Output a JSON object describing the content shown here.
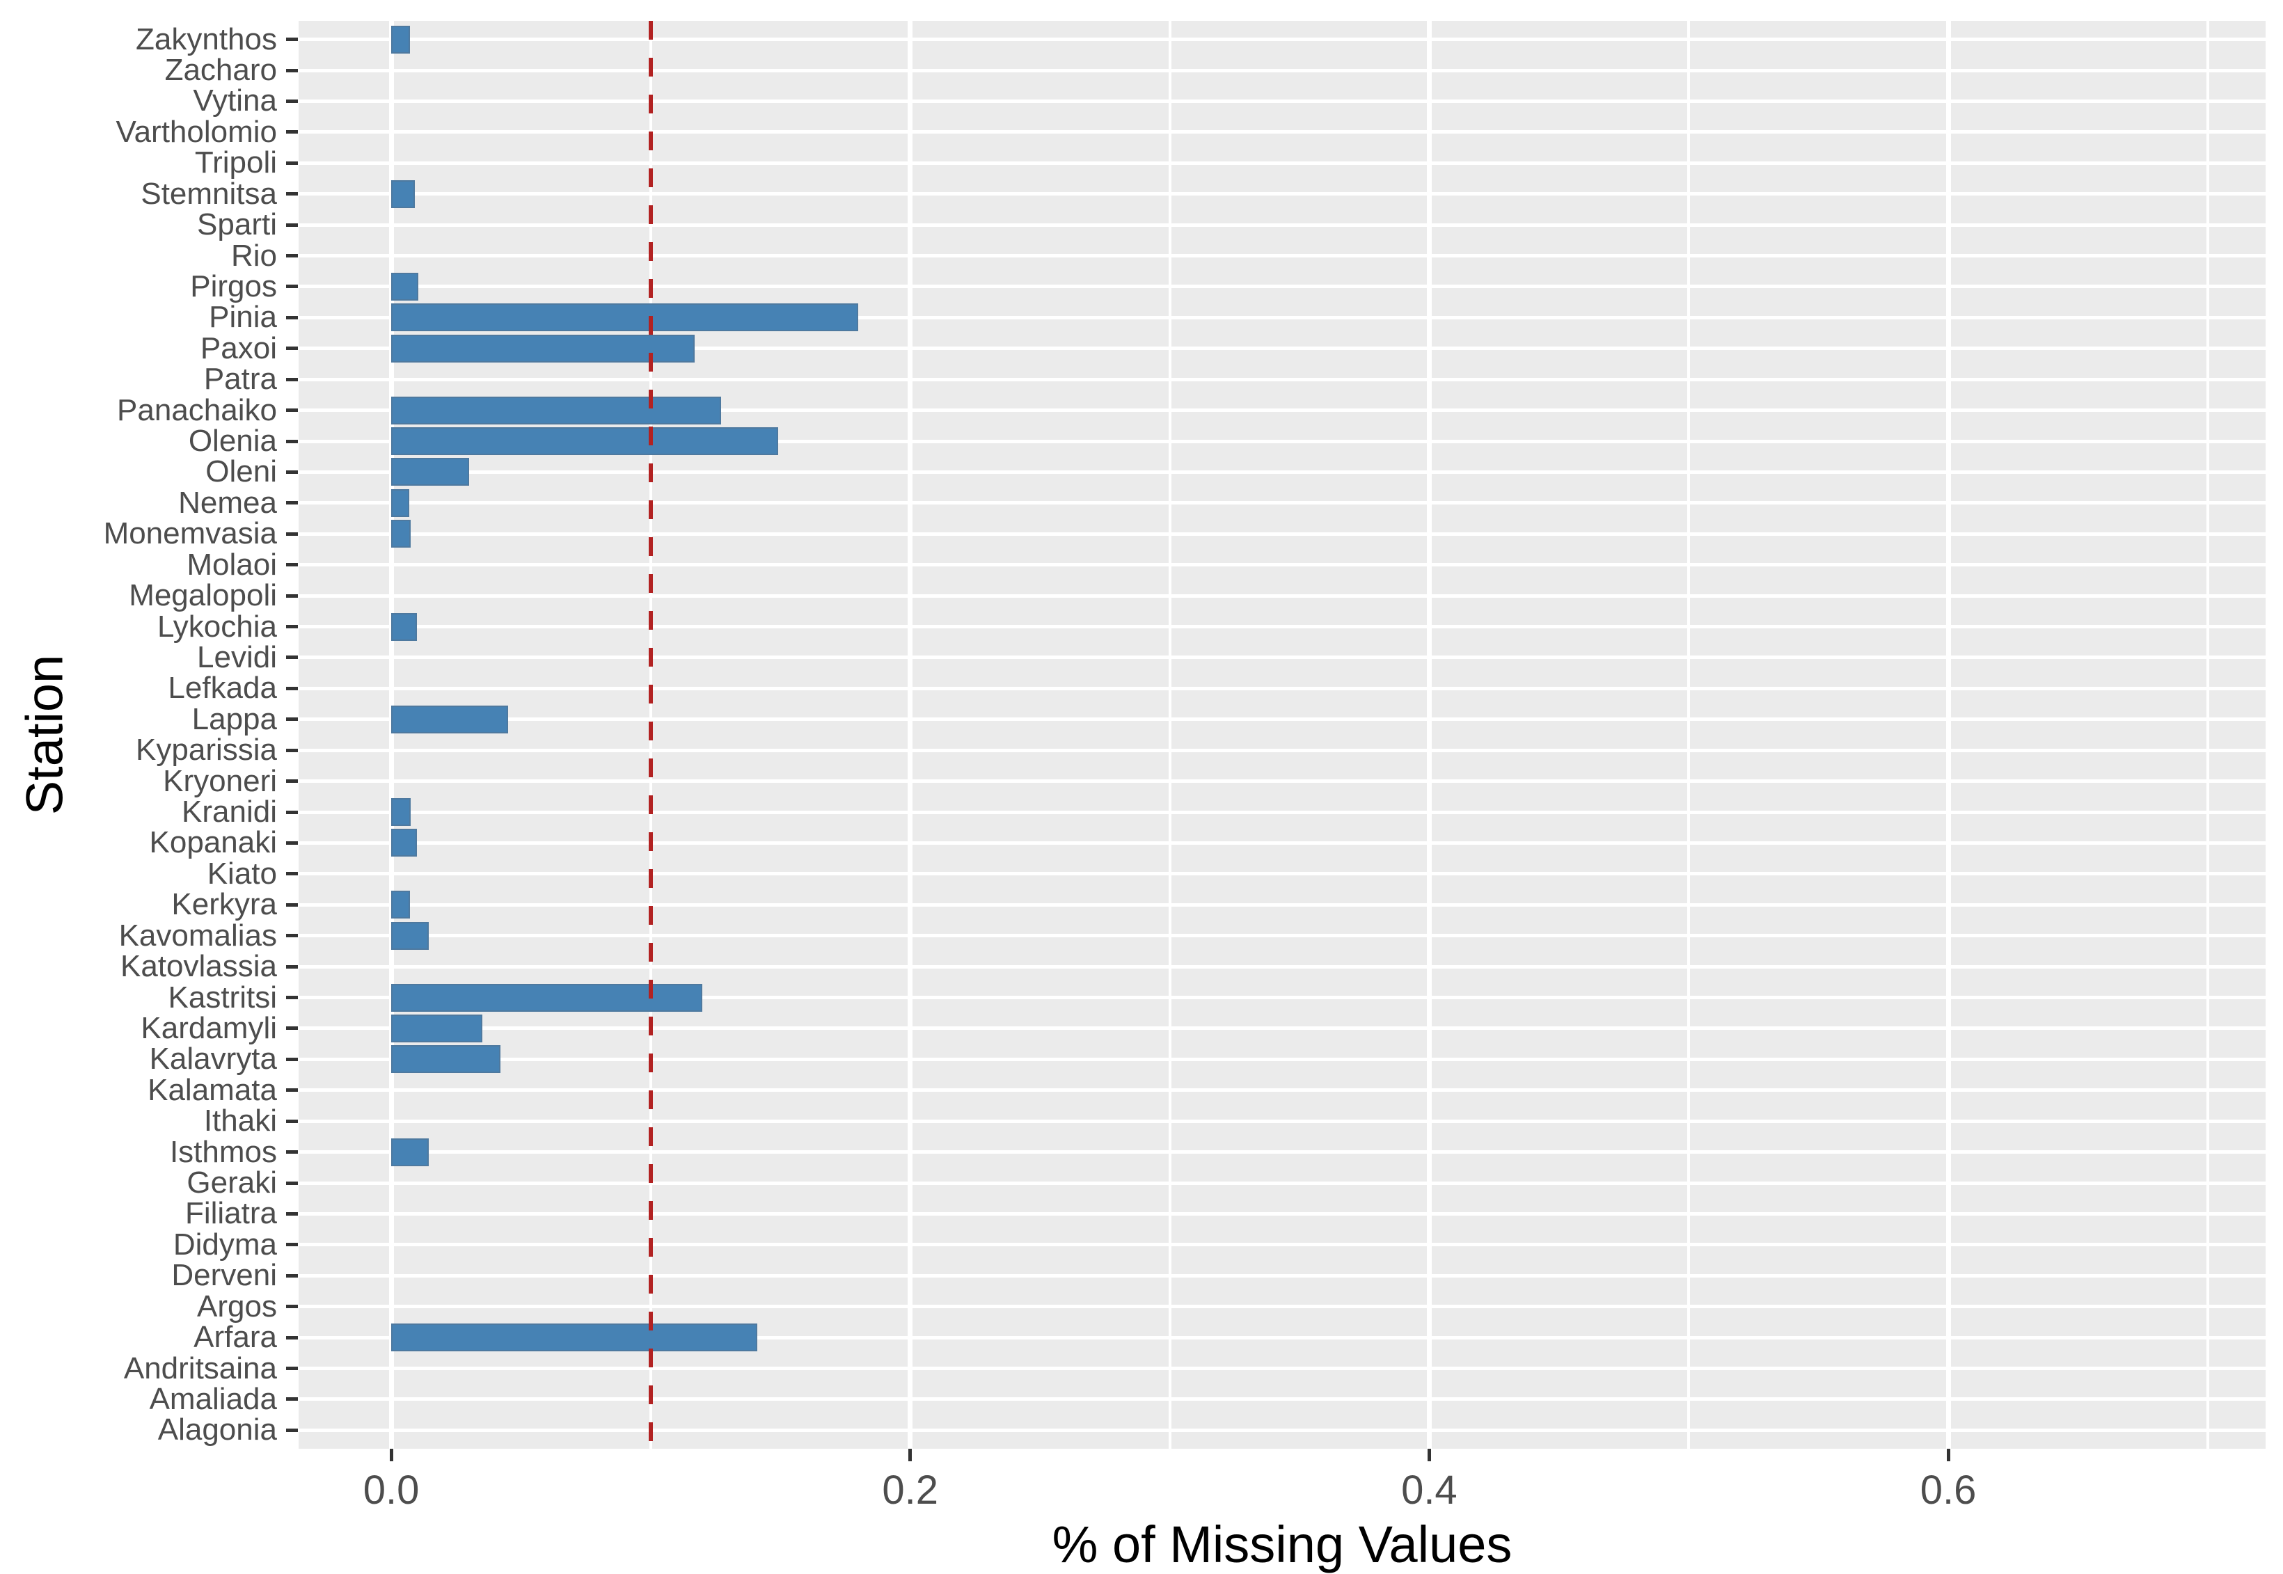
{
  "chart_data": {
    "type": "bar",
    "orientation": "horizontal",
    "title": "",
    "xlabel": "% of Missing Values",
    "ylabel": "Station",
    "categories": [
      "Zakynthos",
      "Zacharo",
      "Vytina",
      "Vartholomio",
      "Tripoli",
      "Stemnitsa",
      "Sparti",
      "Rio",
      "Pirgos",
      "Pinia",
      "Paxoi",
      "Patra",
      "Panachaiko",
      "Olenia",
      "Oleni",
      "Nemea",
      "Monemvasia",
      "Molaoi",
      "Megalopoli",
      "Lykochia",
      "Levidi",
      "Lefkada",
      "Lappa",
      "Kyparissia",
      "Kryoneri",
      "Kranidi",
      "Kopanaki",
      "Kiato",
      "Kerkyra",
      "Kavomalias",
      "Katovlassia",
      "Kastritsi",
      "Kardamyli",
      "Kalavryta",
      "Kalamata",
      "Ithaki",
      "Isthmos",
      "Geraki",
      "Filiatra",
      "Didyma",
      "Derveni",
      "Argos",
      "Arfara",
      "Andritsaina",
      "Amaliada",
      "Alagonia"
    ],
    "values": [
      0.0072,
      0,
      0,
      0,
      0,
      0.009,
      0,
      0,
      0.0105,
      0.18,
      0.117,
      0,
      0.127,
      0.149,
      0.03,
      0.007,
      0.0075,
      0,
      0,
      0.01,
      0,
      0,
      0.045,
      0,
      0,
      0.0075,
      0.01,
      0,
      0.0073,
      0.0145,
      0,
      0.12,
      0.035,
      0.042,
      0,
      0,
      0.0145,
      0,
      0,
      0,
      0,
      0,
      0.141,
      0,
      0,
      0
    ],
    "x_ticks": [
      0,
      0.2,
      0.4,
      0.6
    ],
    "x_tick_labels": [
      "0.0",
      "0.2",
      "0.4",
      "0.6"
    ],
    "x_minor_gridlines": [
      0.1,
      0.3,
      0.5,
      0.7
    ],
    "xlim": [
      -0.0357,
      0.7223
    ],
    "reference_line": {
      "value": 0.1,
      "style": "dashed",
      "color": "#B22222"
    },
    "grid": true,
    "legend": "none",
    "colors": {
      "bar_fill": "#4682B4",
      "panel_background": "#EBEBEB",
      "gridline": "#FFFFFF",
      "axis_text": "#4D4D4D",
      "axis_title": "#000000",
      "tick_mark": "#333333"
    }
  }
}
